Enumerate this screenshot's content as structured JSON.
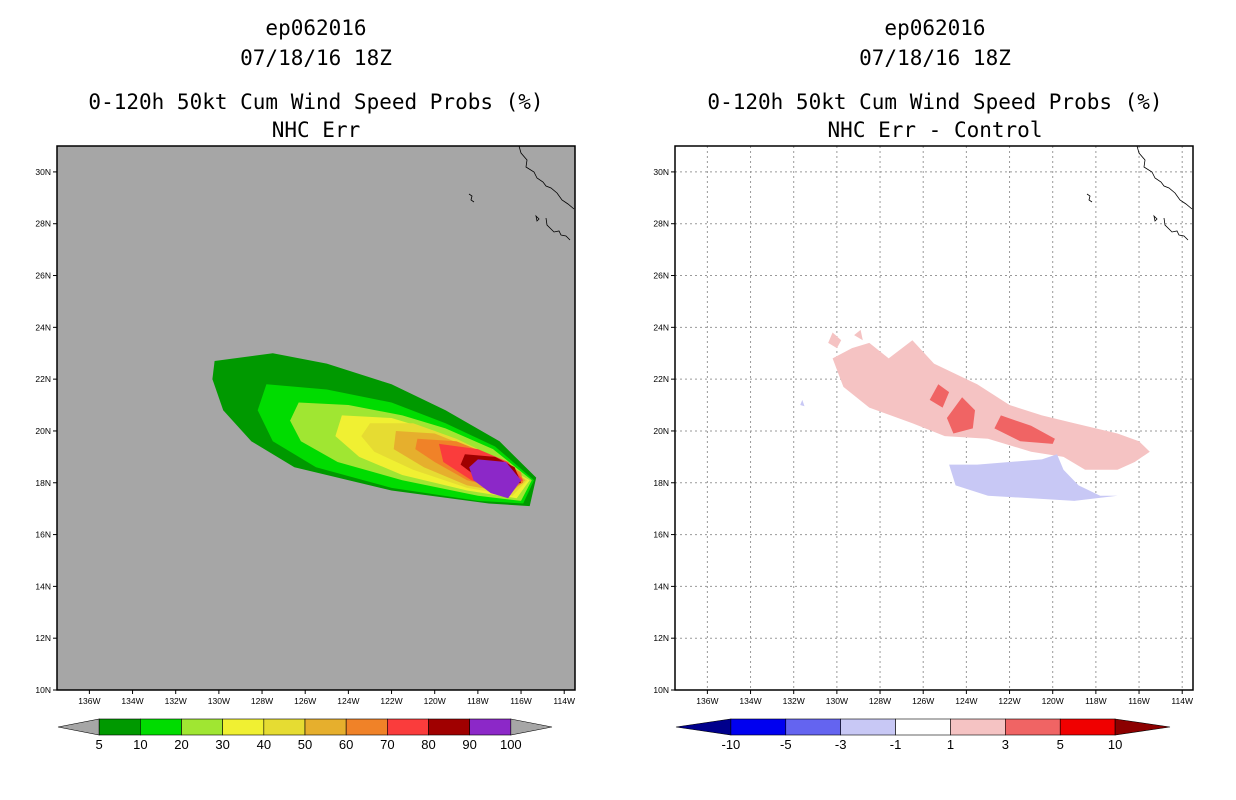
{
  "left": {
    "title1": "ep062016",
    "title2": "07/18/16 18Z",
    "title3": "0-120h 50kt Cum Wind Speed Probs (%)",
    "title4": "NHC Err",
    "background": "#a6a6a6"
  },
  "right": {
    "title1": "ep062016",
    "title2": "07/18/16 18Z",
    "title3": "0-120h 50kt Cum Wind Speed Probs (%)",
    "title4": "NHC Err - Control",
    "background": "#ffffff"
  },
  "chart_data": [
    {
      "type": "heatmap",
      "title": "0-120h 50kt Cum Wind Speed Probs (%)",
      "subtitle": "NHC Err",
      "xlim": [
        -137.5,
        -113.5
      ],
      "ylim": [
        10,
        31
      ],
      "x_ticks": [
        -136,
        -134,
        -132,
        -130,
        -128,
        -126,
        -124,
        -122,
        -120,
        -118,
        -116,
        -114
      ],
      "x_tick_labels": [
        "136W",
        "134W",
        "132W",
        "130W",
        "128W",
        "126W",
        "124W",
        "122W",
        "120W",
        "118W",
        "116W",
        "114W"
      ],
      "y_ticks": [
        10,
        12,
        14,
        16,
        18,
        20,
        22,
        24,
        26,
        28,
        30
      ],
      "y_tick_labels": [
        "10N",
        "12N",
        "14N",
        "16N",
        "18N",
        "20N",
        "22N",
        "24N",
        "26N",
        "28N",
        "30N"
      ],
      "grid": false,
      "colorbar": {
        "labels": [
          "5",
          "10",
          "20",
          "30",
          "40",
          "50",
          "60",
          "70",
          "80",
          "90",
          "100"
        ],
        "colors": [
          "#009900",
          "#00dc00",
          "#a0e632",
          "#f0f032",
          "#e6dc32",
          "#e6af2d",
          "#f08228",
          "#fa3c3c",
          "#a00000",
          "#8c28c8"
        ],
        "end_colors": [
          "#a6a6a6",
          "#a6a6a6"
        ]
      },
      "contours": [
        {
          "level": 5,
          "color": "#009900",
          "pts": [
            [
              -130.2,
              22.7
            ],
            [
              -127.5,
              23
            ],
            [
              -125,
              22.6
            ],
            [
              -122,
              21.8
            ],
            [
              -119.5,
              20.8
            ],
            [
              -117,
              19.6
            ],
            [
              -115.3,
              18.2
            ],
            [
              -115.6,
              17.1
            ],
            [
              -117.5,
              17.2
            ],
            [
              -122,
              17.7
            ],
            [
              -126.5,
              18.6
            ],
            [
              -128.5,
              19.6
            ],
            [
              -129.8,
              20.8
            ],
            [
              -130.3,
              22
            ]
          ]
        },
        {
          "level": 10,
          "color": "#00dc00",
          "pts": [
            [
              -127.8,
              21.8
            ],
            [
              -125,
              21.6
            ],
            [
              -122,
              21.1
            ],
            [
              -119.5,
              20.3
            ],
            [
              -117.2,
              19.4
            ],
            [
              -115.4,
              18.1
            ],
            [
              -115.9,
              17.2
            ],
            [
              -118,
              17.3
            ],
            [
              -122,
              17.8
            ],
            [
              -125.5,
              18.6
            ],
            [
              -127.5,
              19.6
            ],
            [
              -128.2,
              20.8
            ]
          ]
        },
        {
          "level": 20,
          "color": "#a0e632",
          "pts": [
            [
              -126.3,
              21.1
            ],
            [
              -124,
              21
            ],
            [
              -121.5,
              20.6
            ],
            [
              -119.5,
              20.1
            ],
            [
              -117.3,
              19.3
            ],
            [
              -115.5,
              18.1
            ],
            [
              -116,
              17.3
            ],
            [
              -118,
              17.5
            ],
            [
              -121.5,
              18.1
            ],
            [
              -124.5,
              18.8
            ],
            [
              -126.2,
              19.6
            ],
            [
              -126.7,
              20.4
            ]
          ]
        },
        {
          "level": 30,
          "color": "#f0f032",
          "pts": [
            [
              -124.3,
              20.6
            ],
            [
              -122,
              20.5
            ],
            [
              -120,
              20
            ],
            [
              -118,
              19.2
            ],
            [
              -115.6,
              18.1
            ],
            [
              -116.2,
              17.4
            ],
            [
              -118.5,
              17.7
            ],
            [
              -121.5,
              18.3
            ],
            [
              -123.5,
              19
            ],
            [
              -124.6,
              19.8
            ]
          ]
        },
        {
          "level": 40,
          "color": "#e6dc32",
          "pts": [
            [
              -123,
              20.3
            ],
            [
              -121,
              20.3
            ],
            [
              -119,
              19.7
            ],
            [
              -117,
              18.9
            ],
            [
              -115.7,
              18.1
            ],
            [
              -116.4,
              17.5
            ],
            [
              -118.5,
              17.8
            ],
            [
              -121,
              18.5
            ],
            [
              -122.8,
              19.2
            ],
            [
              -123.4,
              19.8
            ]
          ]
        },
        {
          "level": 50,
          "color": "#e6af2d",
          "pts": [
            [
              -121.8,
              20
            ],
            [
              -120,
              19.9
            ],
            [
              -118.5,
              19.4
            ],
            [
              -116.6,
              18.7
            ],
            [
              -115.8,
              18.1
            ],
            [
              -116.5,
              17.6
            ],
            [
              -118.5,
              17.9
            ],
            [
              -120.5,
              18.6
            ],
            [
              -121.9,
              19.3
            ]
          ]
        },
        {
          "level": 60,
          "color": "#f08228",
          "pts": [
            [
              -120.8,
              19.7
            ],
            [
              -119,
              19.6
            ],
            [
              -117.5,
              19.1
            ],
            [
              -116,
              18.4
            ],
            [
              -115.9,
              18
            ],
            [
              -116.6,
              17.7
            ],
            [
              -118.5,
              18.1
            ],
            [
              -120,
              18.8
            ],
            [
              -120.9,
              19.3
            ]
          ]
        },
        {
          "level": 70,
          "color": "#fa3c3c",
          "pts": [
            [
              -119.8,
              19.5
            ],
            [
              -118,
              19.3
            ],
            [
              -116.6,
              18.8
            ],
            [
              -115.9,
              18.1
            ],
            [
              -116.7,
              17.7
            ],
            [
              -118.3,
              18.1
            ],
            [
              -119.6,
              18.8
            ]
          ]
        },
        {
          "level": 80,
          "color": "#a00000",
          "pts": [
            [
              -118.6,
              19.1
            ],
            [
              -117.2,
              19
            ],
            [
              -116.3,
              18.6
            ],
            [
              -116,
              18
            ],
            [
              -116.8,
              17.8
            ],
            [
              -118,
              18.2
            ],
            [
              -118.8,
              18.7
            ]
          ]
        },
        {
          "level": 90,
          "color": "#8c28c8",
          "pts": [
            [
              -118,
              18.9
            ],
            [
              -116.7,
              18.8
            ],
            [
              -116,
              18.1
            ],
            [
              -116.6,
              17.4
            ],
            [
              -117.4,
              17.6
            ],
            [
              -118.2,
              18.1
            ],
            [
              -118.4,
              18.6
            ]
          ]
        }
      ]
    },
    {
      "type": "heatmap",
      "title": "0-120h 50kt Cum Wind Speed Probs (%)",
      "subtitle": "NHC Err - Control",
      "xlim": [
        -137.5,
        -113.5
      ],
      "ylim": [
        10,
        31
      ],
      "x_ticks": [
        -136,
        -134,
        -132,
        -130,
        -128,
        -126,
        -124,
        -122,
        -120,
        -118,
        -116,
        -114
      ],
      "x_tick_labels": [
        "136W",
        "134W",
        "132W",
        "130W",
        "128W",
        "126W",
        "124W",
        "122W",
        "120W",
        "118W",
        "116W",
        "114W"
      ],
      "y_ticks": [
        10,
        12,
        14,
        16,
        18,
        20,
        22,
        24,
        26,
        28,
        30
      ],
      "y_tick_labels": [
        "10N",
        "12N",
        "14N",
        "16N",
        "18N",
        "20N",
        "22N",
        "24N",
        "26N",
        "28N",
        "30N"
      ],
      "grid": true,
      "colorbar": {
        "labels": [
          "-10",
          "-5",
          "-3",
          "-1",
          "1",
          "3",
          "5",
          "10"
        ],
        "colors": [
          "#0000f0",
          "#6464f0",
          "#c8c8f5",
          "#ffffff",
          "#f5c3c3",
          "#f06464",
          "#f00000"
        ],
        "end_colors": [
          "#00008c",
          "#8c0000"
        ]
      },
      "contours": [
        {
          "level": 1,
          "color": "#f5c3c3",
          "pts": [
            [
              -130.2,
              22.8
            ],
            [
              -129.3,
              23.2
            ],
            [
              -128.5,
              23.4
            ],
            [
              -127.6,
              22.8
            ],
            [
              -126.5,
              23.5
            ],
            [
              -125.5,
              22.6
            ],
            [
              -123.5,
              21.8
            ],
            [
              -122,
              21
            ],
            [
              -120.5,
              20.6
            ],
            [
              -119,
              20.3
            ],
            [
              -117,
              19.9
            ],
            [
              -116,
              19.6
            ],
            [
              -115.5,
              19.2
            ],
            [
              -116.2,
              18.8
            ],
            [
              -117,
              18.5
            ],
            [
              -118.5,
              18.5
            ],
            [
              -119.5,
              19
            ],
            [
              -121,
              19.2
            ],
            [
              -123,
              19.7
            ],
            [
              -125,
              19.8
            ],
            [
              -126.5,
              20.3
            ],
            [
              -128.5,
              20.9
            ],
            [
              -129.7,
              21.7
            ]
          ]
        },
        {
          "level": 1,
          "color": "#f5c3c3",
          "pts": [
            [
              -130.4,
              23.4
            ],
            [
              -130.2,
              23.8
            ],
            [
              -129.8,
              23.5
            ],
            [
              -130,
              23.2
            ]
          ]
        },
        {
          "level": 1,
          "color": "#f5c3c3",
          "pts": [
            [
              -129.2,
              23.7
            ],
            [
              -128.9,
              23.9
            ],
            [
              -128.8,
              23.5
            ]
          ]
        },
        {
          "level": 3,
          "color": "#f06464",
          "pts": [
            [
              -125.3,
              21.8
            ],
            [
              -124.8,
              21.5
            ],
            [
              -125.1,
              20.9
            ],
            [
              -125.7,
              21.2
            ]
          ]
        },
        {
          "level": 3,
          "color": "#f06464",
          "pts": [
            [
              -124.2,
              21.3
            ],
            [
              -123.6,
              20.8
            ],
            [
              -123.7,
              20.1
            ],
            [
              -124.6,
              19.9
            ],
            [
              -124.9,
              20.5
            ]
          ]
        },
        {
          "level": 3,
          "color": "#f06464",
          "pts": [
            [
              -122.4,
              20.6
            ],
            [
              -121,
              20.2
            ],
            [
              -119.9,
              19.7
            ],
            [
              -120,
              19.5
            ],
            [
              -121.5,
              19.6
            ],
            [
              -122.7,
              20.1
            ]
          ]
        },
        {
          "level": -1,
          "color": "#c8c8f5",
          "pts": [
            [
              -124.8,
              18.7
            ],
            [
              -123.5,
              18.7
            ],
            [
              -122,
              18.8
            ],
            [
              -120.5,
              18.9
            ],
            [
              -119.8,
              19.1
            ],
            [
              -119.5,
              18.5
            ],
            [
              -118.8,
              17.9
            ],
            [
              -117.8,
              17.5
            ],
            [
              -117,
              17.5
            ],
            [
              -119,
              17.3
            ],
            [
              -121,
              17.4
            ],
            [
              -123,
              17.5
            ],
            [
              -124.5,
              17.9
            ]
          ]
        },
        {
          "level": -1,
          "color": "#c8c8f5",
          "pts": [
            [
              -131.7,
              21
            ],
            [
              -131.6,
              21.2
            ],
            [
              -131.5,
              20.95
            ]
          ]
        }
      ]
    }
  ]
}
